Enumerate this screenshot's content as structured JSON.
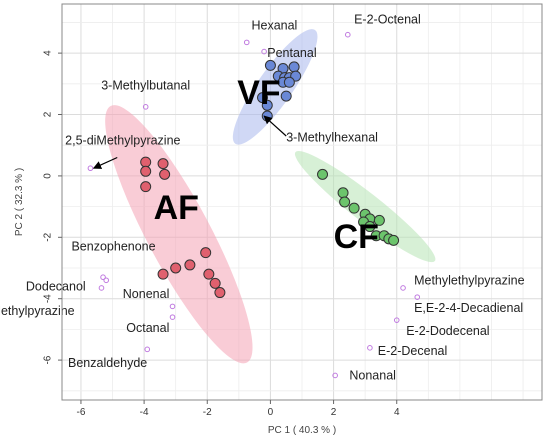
{
  "chart_data": {
    "type": "scatter",
    "title": "",
    "xlabel": "PC 1 ( 40.3 % )",
    "ylabel": "PC 2 ( 32.3 % )",
    "xlim": [
      -6.6,
      8.6
    ],
    "ylim": [
      -7.3,
      5.6
    ],
    "xticks": [
      -6,
      -4,
      -2,
      0,
      2,
      4
    ],
    "yticks": [
      -6,
      -4,
      -2,
      0,
      2,
      4
    ],
    "grid": true,
    "groups": [
      {
        "label": "AF",
        "color": "#e0606e",
        "ellipse_color": "#f4a3b4",
        "ellipse": {
          "cx": -2.9,
          "cy": -1.9,
          "rx": 4.6,
          "ry": 1.0,
          "angle_deg": -62
        },
        "points": [
          {
            "x": -3.95,
            "y": 0.45
          },
          {
            "x": -3.4,
            "y": 0.4
          },
          {
            "x": -3.95,
            "y": 0.15
          },
          {
            "x": -3.35,
            "y": 0.05
          },
          {
            "x": -3.95,
            "y": -0.35
          },
          {
            "x": -2.05,
            "y": -2.5
          },
          {
            "x": -2.55,
            "y": -2.9
          },
          {
            "x": -3.0,
            "y": -3.0
          },
          {
            "x": -1.95,
            "y": -3.2
          },
          {
            "x": -3.4,
            "y": -3.2
          },
          {
            "x": -1.75,
            "y": -3.5
          },
          {
            "x": -1.6,
            "y": -3.8
          }
        ]
      },
      {
        "label": "VF",
        "color": "#6a88d6",
        "ellipse_color": "#aab8ec",
        "ellipse": {
          "cx": 0.15,
          "cy": 2.9,
          "rx": 2.2,
          "ry": 0.55,
          "angle_deg": 55
        },
        "points": [
          {
            "x": 0.0,
            "y": 3.6
          },
          {
            "x": 0.4,
            "y": 3.5
          },
          {
            "x": 0.75,
            "y": 3.55
          },
          {
            "x": 0.25,
            "y": 3.25
          },
          {
            "x": 0.45,
            "y": 3.2
          },
          {
            "x": 0.6,
            "y": 3.2
          },
          {
            "x": 0.8,
            "y": 3.25
          },
          {
            "x": 0.4,
            "y": 3.05
          },
          {
            "x": 0.6,
            "y": 3.05
          },
          {
            "x": -0.25,
            "y": 2.55
          },
          {
            "x": 0.5,
            "y": 2.6
          },
          {
            "x": -0.1,
            "y": 2.3
          },
          {
            "x": -0.1,
            "y": 1.95
          }
        ]
      },
      {
        "label": "CF",
        "color": "#6cc46c",
        "ellipse_color": "#b7e4b4",
        "ellipse": {
          "cx": 3.0,
          "cy": -1.0,
          "rx": 2.8,
          "ry": 0.45,
          "angle_deg": -38
        },
        "points": [
          {
            "x": 1.65,
            "y": 0.05
          },
          {
            "x": 2.3,
            "y": -0.55
          },
          {
            "x": 2.35,
            "y": -0.85
          },
          {
            "x": 2.65,
            "y": -1.05
          },
          {
            "x": 3.0,
            "y": -1.25
          },
          {
            "x": 3.15,
            "y": -1.4
          },
          {
            "x": 2.95,
            "y": -1.5
          },
          {
            "x": 3.45,
            "y": -1.45
          },
          {
            "x": 3.15,
            "y": -1.65
          },
          {
            "x": 3.35,
            "y": -1.95
          },
          {
            "x": 3.6,
            "y": -1.95
          },
          {
            "x": 3.75,
            "y": -2.05
          },
          {
            "x": 3.9,
            "y": -2.1
          }
        ]
      }
    ],
    "loadings": [
      {
        "label": "Hexanal",
        "x": -0.75,
        "y": 4.35,
        "anchor": "start",
        "dx": 0.15,
        "dy": 0.55
      },
      {
        "label": "Pentanal",
        "x": -0.2,
        "y": 4.05,
        "anchor": "start",
        "dx": 0.1,
        "dy": -0.05
      },
      {
        "label": "E-2-Octenal",
        "x": 2.45,
        "y": 4.6,
        "anchor": "start",
        "dx": 0.2,
        "dy": 0.5
      },
      {
        "label": "3-Methylbutanal",
        "x": -3.95,
        "y": 2.25,
        "anchor": "middle",
        "dx": 0.0,
        "dy": 0.7
      },
      {
        "label": "2,5-diMethylpyrazine",
        "x": -5.7,
        "y": 0.25,
        "anchor": "start",
        "dx": -0.8,
        "dy": 0.9
      },
      {
        "label": "Benzophenone",
        "x": -5.3,
        "y": -3.3,
        "anchor": "start",
        "dx": -1.0,
        "dy": 1.0
      },
      {
        "label": "Dodecanol",
        "x": -5.2,
        "y": -3.4,
        "anchor": "end",
        "dx": -0.65,
        "dy": -0.2
      },
      {
        "label": "Methylpyrazine",
        "x": -5.35,
        "y": -3.65,
        "anchor": "end",
        "dx": -0.85,
        "dy": -0.75
      },
      {
        "label": "Nonenal",
        "x": -3.1,
        "y": -4.25,
        "anchor": "end",
        "dx": -0.1,
        "dy": 0.4
      },
      {
        "label": "Octanal",
        "x": -3.1,
        "y": -4.6,
        "anchor": "end",
        "dx": -0.1,
        "dy": -0.35
      },
      {
        "label": "Benzaldehyde",
        "x": -3.9,
        "y": -5.65,
        "anchor": "end",
        "dx": 0.0,
        "dy": -0.45
      },
      {
        "label": "Methylethylpyrazine",
        "x": 4.2,
        "y": -3.65,
        "anchor": "start",
        "dx": 0.35,
        "dy": 0.25
      },
      {
        "label": "E,E-2-4-Decadienal",
        "x": 4.65,
        "y": -3.95,
        "anchor": "start",
        "dx": -0.1,
        "dy": -0.35
      },
      {
        "label": "E-2-Dodecenal",
        "x": 4.0,
        "y": -4.7,
        "anchor": "start",
        "dx": 0.3,
        "dy": -0.35
      },
      {
        "label": "E-2-Decenal",
        "x": 3.15,
        "y": -5.6,
        "anchor": "start",
        "dx": 0.25,
        "dy": -0.1
      },
      {
        "label": "Nonanal",
        "x": 2.05,
        "y": -6.5,
        "anchor": "start",
        "dx": 0.45,
        "dy": 0.0
      },
      {
        "label": "3-Methylhexanal",
        "x": -0.05,
        "y": 1.9,
        "anchor": "start",
        "dx": 0.55,
        "dy": -0.65
      }
    ],
    "loading_color": "#c07be0",
    "arrows": [
      {
        "label_ref": "2,5-diMethylpyrazine",
        "from": [
          -4.85,
          0.6
        ],
        "to": [
          -5.6,
          0.25
        ]
      },
      {
        "label_ref": "3-Methylhexanal",
        "from": [
          0.5,
          1.3
        ],
        "to": [
          -0.2,
          1.95
        ]
      }
    ]
  }
}
